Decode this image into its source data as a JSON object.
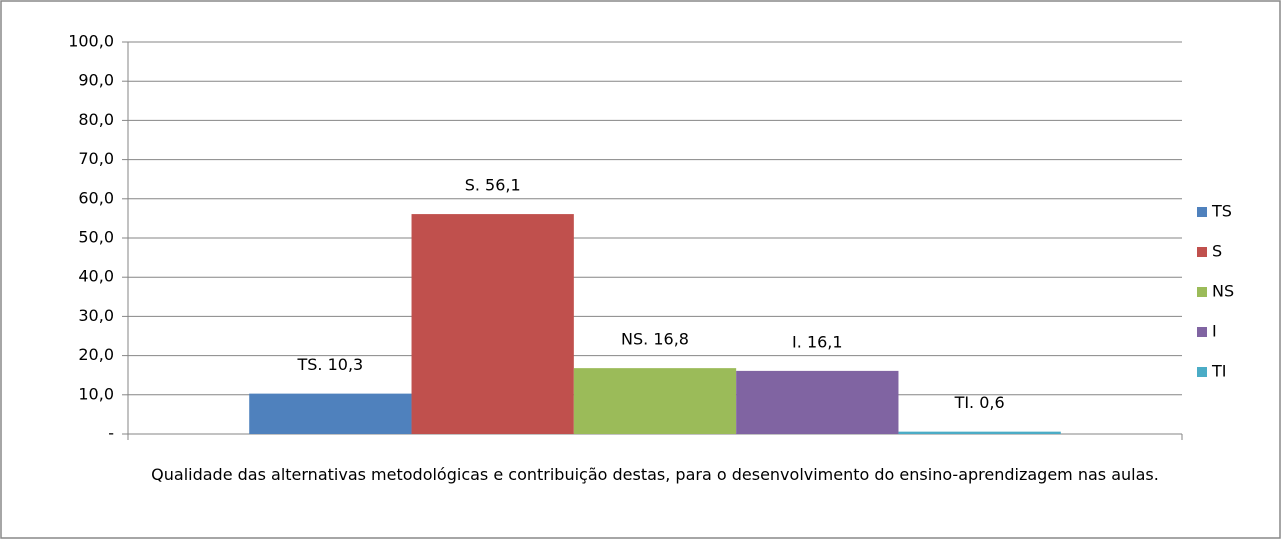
{
  "chart_data": {
    "type": "bar",
    "categories": [
      "Qualidade das alternativas metodológicas e contribuição destas, para o desenvolvimento do ensino-aprendizagem nas aulas."
    ],
    "series": [
      {
        "name": "TS",
        "color": "#4f81bd",
        "values": [
          10.3
        ],
        "value_labels": [
          "TS.  10,3"
        ]
      },
      {
        "name": "S",
        "color": "#c0504d",
        "values": [
          56.1
        ],
        "value_labels": [
          "S.  56,1"
        ]
      },
      {
        "name": "NS",
        "color": "#9bbb59",
        "values": [
          16.8
        ],
        "value_labels": [
          "NS.  16,8"
        ]
      },
      {
        "name": "I",
        "color": "#8064a2",
        "values": [
          16.1
        ],
        "value_labels": [
          "I.  16,1"
        ]
      },
      {
        "name": "TI",
        "color": "#4bacc6",
        "values": [
          0.6
        ],
        "value_labels": [
          "TI.  0,6"
        ]
      }
    ],
    "ylim": [
      0,
      100
    ],
    "yticks": [
      {
        "value": 0,
        "label": "-"
      },
      {
        "value": 10,
        "label": "10,0"
      },
      {
        "value": 20,
        "label": "20,0"
      },
      {
        "value": 30,
        "label": "30,0"
      },
      {
        "value": 40,
        "label": "40,0"
      },
      {
        "value": 50,
        "label": "50,0"
      },
      {
        "value": 60,
        "label": "60,0"
      },
      {
        "value": 70,
        "label": "70,0"
      },
      {
        "value": 80,
        "label": "80,0"
      },
      {
        "value": 90,
        "label": "90,0"
      },
      {
        "value": 100,
        "label": "100,0"
      }
    ],
    "grid": true,
    "legend": "right"
  }
}
